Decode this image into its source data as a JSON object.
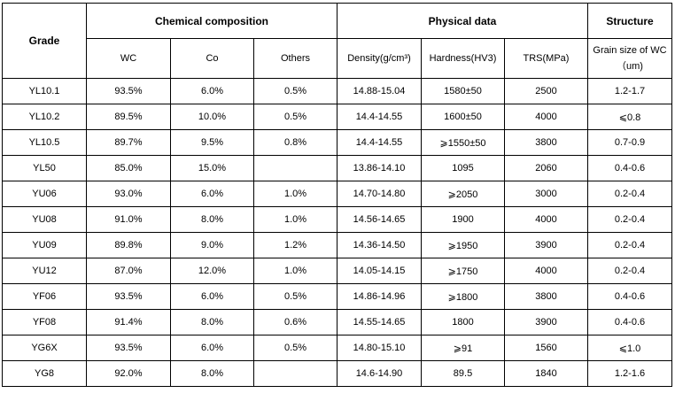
{
  "table": {
    "grade_header": "Grade",
    "groups": {
      "chemical": "Chemical composition",
      "physical": "Physical data",
      "structure": "Structure"
    },
    "subheaders": {
      "wc": "WC",
      "co": "Co",
      "others": "Others",
      "density": "Density(g/cm³)",
      "hardness": "Hardness(HV3)",
      "trs": "TRS(MPa)",
      "grain": "Grain size of WC（um)"
    },
    "rows": [
      {
        "grade": "YL10.1",
        "wc": "93.5%",
        "co": "6.0%",
        "others": "0.5%",
        "density": "14.88-15.04",
        "hardness": "1580±50",
        "trs": "2500",
        "grain": "1.2-1.7"
      },
      {
        "grade": "YL10.2",
        "wc": "89.5%",
        "co": "10.0%",
        "others": "0.5%",
        "density": "14.4-14.55",
        "hardness": "1600±50",
        "trs": "4000",
        "grain": "⩽0.8"
      },
      {
        "grade": "YL10.5",
        "wc": "89.7%",
        "co": "9.5%",
        "others": "0.8%",
        "density": "14.4-14.55",
        "hardness": "⩾1550±50",
        "trs": "3800",
        "grain": "0.7-0.9"
      },
      {
        "grade": "YL50",
        "wc": "85.0%",
        "co": "15.0%",
        "others": "",
        "density": "13.86-14.10",
        "hardness": "1095",
        "trs": "2060",
        "grain": "0.4-0.6"
      },
      {
        "grade": "YU06",
        "wc": "93.0%",
        "co": "6.0%",
        "others": "1.0%",
        "density": "14.70-14.80",
        "hardness": "⩾2050",
        "trs": "3000",
        "grain": "0.2-0.4"
      },
      {
        "grade": "YU08",
        "wc": "91.0%",
        "co": "8.0%",
        "others": "1.0%",
        "density": "14.56-14.65",
        "hardness": "1900",
        "trs": "4000",
        "grain": "0.2-0.4"
      },
      {
        "grade": "YU09",
        "wc": "89.8%",
        "co": "9.0%",
        "others": "1.2%",
        "density": "14.36-14.50",
        "hardness": "⩾1950",
        "trs": "3900",
        "grain": "0.2-0.4"
      },
      {
        "grade": "YU12",
        "wc": "87.0%",
        "co": "12.0%",
        "others": "1.0%",
        "density": "14.05-14.15",
        "hardness": "⩾1750",
        "trs": "4000",
        "grain": "0.2-0.4"
      },
      {
        "grade": "YF06",
        "wc": "93.5%",
        "co": "6.0%",
        "others": "0.5%",
        "density": "14.86-14.96",
        "hardness": "⩾1800",
        "trs": "3800",
        "grain": "0.4-0.6"
      },
      {
        "grade": "YF08",
        "wc": "91.4%",
        "co": "8.0%",
        "others": "0.6%",
        "density": "14.55-14.65",
        "hardness": "1800",
        "trs": "3900",
        "grain": "0.4-0.6"
      },
      {
        "grade": "YG6X",
        "wc": "93.5%",
        "co": "6.0%",
        "others": "0.5%",
        "density": "14.80-15.10",
        "hardness": "⩾91",
        "trs": "1560",
        "grain": "⩽1.0"
      },
      {
        "grade": "YG8",
        "wc": "92.0%",
        "co": "8.0%",
        "others": "",
        "density": "14.6-14.90",
        "hardness": "89.5",
        "trs": "1840",
        "grain": "1.2-1.6"
      }
    ]
  }
}
